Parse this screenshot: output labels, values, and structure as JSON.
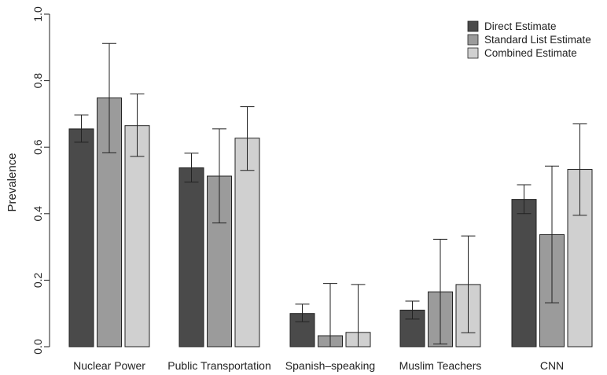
{
  "chart_data": {
    "type": "bar",
    "title": "",
    "xlabel": "",
    "ylabel": "Prevalence",
    "ylim": [
      0,
      1.0
    ],
    "yticks": [
      "0.0",
      "0.2",
      "0.4",
      "0.6",
      "0.8",
      "1.0"
    ],
    "categories": [
      "Nuclear Power",
      "Public Transportation",
      "Spanish–speaking",
      "Muslim Teachers",
      "CNN"
    ],
    "series": [
      {
        "name": "Direct Estimate",
        "color": "#4a4a4a",
        "values": [
          0.655,
          0.538,
          0.1,
          0.11,
          0.443
        ],
        "err_low": [
          0.615,
          0.495,
          0.075,
          0.083,
          0.4
        ],
        "err_high": [
          0.697,
          0.582,
          0.128,
          0.137,
          0.487
        ]
      },
      {
        "name": "Standard List Estimate",
        "color": "#9b9b9b",
        "values": [
          0.748,
          0.513,
          0.033,
          0.165,
          0.337
        ],
        "err_low": [
          0.583,
          0.372,
          0.0,
          0.008,
          0.132
        ],
        "err_high": [
          0.912,
          0.655,
          0.19,
          0.323,
          0.543
        ]
      },
      {
        "name": "Combined Estimate",
        "color": "#d0d0d0",
        "values": [
          0.665,
          0.627,
          0.043,
          0.187,
          0.533
        ],
        "err_low": [
          0.572,
          0.53,
          0.0,
          0.042,
          0.395
        ],
        "err_high": [
          0.76,
          0.722,
          0.187,
          0.333,
          0.67
        ]
      }
    ],
    "legend_position": "top-right",
    "grid": false,
    "error_bars": true
  }
}
